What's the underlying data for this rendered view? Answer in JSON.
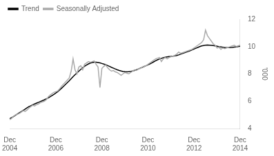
{
  "chart_data": {
    "type": "line",
    "ylabel": "'000",
    "categories": [
      "Dec\n2004",
      null,
      null,
      null,
      null,
      null,
      null,
      null,
      null,
      null,
      null,
      null,
      null,
      null,
      null,
      null,
      null,
      null,
      null,
      null,
      null,
      null,
      null,
      null,
      "Dec\n2006",
      null,
      null,
      null,
      null,
      null,
      null,
      null,
      null,
      null,
      null,
      null,
      null,
      null,
      null,
      null,
      null,
      null,
      null,
      null,
      null,
      null,
      null,
      null,
      "Dec\n2008",
      null,
      null,
      null,
      null,
      null,
      null,
      null,
      null,
      null,
      null,
      null,
      null,
      null,
      null,
      null,
      null,
      null,
      null,
      null,
      null,
      null,
      null,
      null,
      "Dec\n2010",
      null,
      null,
      null,
      null,
      null,
      null,
      null,
      null,
      null,
      null,
      null,
      null,
      null,
      null,
      null,
      null,
      null,
      null,
      null,
      null,
      null,
      null,
      null,
      "Dec\n2012",
      null,
      null,
      null,
      null,
      null,
      null,
      null,
      null,
      null,
      null,
      null,
      null,
      null,
      null,
      null,
      null,
      null,
      null,
      null,
      null,
      null,
      null,
      null,
      "Dec\n2014"
    ],
    "series": [
      {
        "name": "Trend",
        "color": "#000000",
        "values": [
          4.72,
          4.8,
          4.88,
          4.97,
          5.06,
          5.15,
          5.24,
          5.33,
          5.42,
          5.51,
          5.6,
          5.67,
          5.74,
          5.8,
          5.86,
          5.92,
          5.98,
          6.04,
          6.1,
          6.17,
          6.24,
          6.32,
          6.41,
          6.5,
          6.6,
          6.7,
          6.82,
          6.95,
          7.08,
          7.22,
          7.36,
          7.5,
          7.65,
          7.8,
          7.94,
          8.07,
          8.2,
          8.33,
          8.45,
          8.56,
          8.65,
          8.73,
          8.79,
          8.83,
          8.85,
          8.85,
          8.83,
          8.8,
          8.76,
          8.72,
          8.67,
          8.61,
          8.55,
          8.48,
          8.42,
          8.36,
          8.3,
          8.25,
          8.21,
          8.18,
          8.16,
          8.15,
          8.16,
          8.18,
          8.21,
          8.25,
          8.3,
          8.36,
          8.42,
          8.48,
          8.54,
          8.6,
          8.66,
          8.73,
          8.8,
          8.88,
          8.96,
          9.03,
          9.09,
          9.14,
          9.18,
          9.22,
          9.25,
          9.27,
          9.28,
          9.3,
          9.32,
          9.35,
          9.39,
          9.44,
          9.49,
          9.54,
          9.59,
          9.64,
          9.7,
          9.76,
          9.82,
          9.88,
          9.94,
          10.0,
          10.05,
          10.08,
          10.1,
          10.11,
          10.1,
          10.09,
          10.07,
          10.05,
          10.02,
          9.99,
          9.97,
          9.95,
          9.93,
          9.92,
          9.92,
          9.93,
          9.94,
          9.96,
          9.98,
          10.0,
          10.02
        ]
      },
      {
        "name": "Seasonally Adjusted",
        "color": "#aaaaaa",
        "values": [
          4.65,
          4.75,
          4.9,
          5.0,
          5.05,
          5.1,
          5.2,
          5.3,
          5.25,
          5.35,
          5.5,
          5.6,
          5.7,
          5.65,
          5.75,
          5.8,
          5.9,
          5.95,
          6.0,
          6.1,
          6.3,
          6.45,
          6.55,
          6.65,
          6.7,
          6.75,
          6.9,
          7.1,
          7.25,
          7.4,
          7.55,
          7.7,
          8.2,
          9.1,
          8.3,
          8.0,
          8.5,
          8.6,
          8.3,
          8.7,
          8.8,
          8.9,
          8.85,
          8.9,
          8.95,
          8.7,
          8.5,
          7.0,
          8.4,
          8.55,
          8.65,
          8.45,
          8.3,
          8.2,
          8.25,
          8.15,
          8.1,
          8.0,
          7.9,
          8.0,
          8.1,
          8.05,
          8.0,
          8.1,
          8.2,
          8.3,
          8.25,
          8.35,
          8.4,
          8.5,
          8.55,
          8.6,
          8.7,
          8.8,
          8.9,
          9.0,
          9.1,
          9.15,
          9.2,
          8.9,
          9.1,
          9.2,
          9.1,
          9.2,
          9.25,
          9.3,
          9.35,
          9.45,
          9.6,
          9.5,
          9.55,
          9.6,
          9.65,
          9.7,
          9.75,
          9.8,
          9.9,
          10.0,
          10.1,
          10.2,
          10.3,
          10.5,
          11.2,
          10.8,
          10.6,
          10.4,
          10.2,
          10.1,
          9.9,
          9.95,
          9.8,
          9.9,
          9.85,
          9.9,
          9.95,
          10.0,
          10.05,
          10.1,
          10.0,
          10.05,
          10.1
        ]
      }
    ],
    "ylim": [
      4,
      12
    ],
    "yticks": [
      4,
      6,
      8,
      10,
      12
    ],
    "grid": false,
    "legend": "upper left"
  }
}
